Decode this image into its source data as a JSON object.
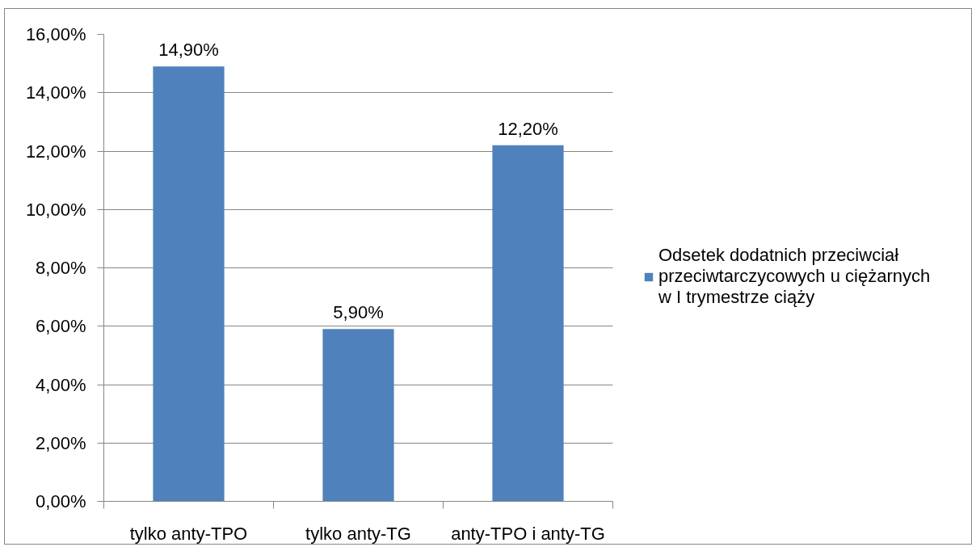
{
  "chart_data": {
    "type": "bar",
    "categories": [
      "tylko anty-TPO",
      "tylko anty-TG",
      "anty-TPO i anty-TG"
    ],
    "series": [
      {
        "name": "Odsetek dodatnich przeciwciał przeciwtarczycowych u ciężarnych w I trymestrze ciąży",
        "color": "#4f81bd",
        "values": [
          14.9,
          5.9,
          12.2
        ],
        "value_labels": [
          "14,90%",
          "5,90%",
          "12,20%"
        ]
      }
    ],
    "ylim": [
      0,
      16
    ],
    "yticks": [
      {
        "value": 0,
        "label": "0,00%"
      },
      {
        "value": 2,
        "label": "2,00%"
      },
      {
        "value": 4,
        "label": "4,00%"
      },
      {
        "value": 6,
        "label": "6,00%"
      },
      {
        "value": 8,
        "label": "8,00%"
      },
      {
        "value": 10,
        "label": "10,00%"
      },
      {
        "value": 12,
        "label": "12,00%"
      },
      {
        "value": 14,
        "label": "14,00%"
      },
      {
        "value": 16,
        "label": "16,00%"
      }
    ],
    "grid": "y",
    "legend": "right"
  }
}
